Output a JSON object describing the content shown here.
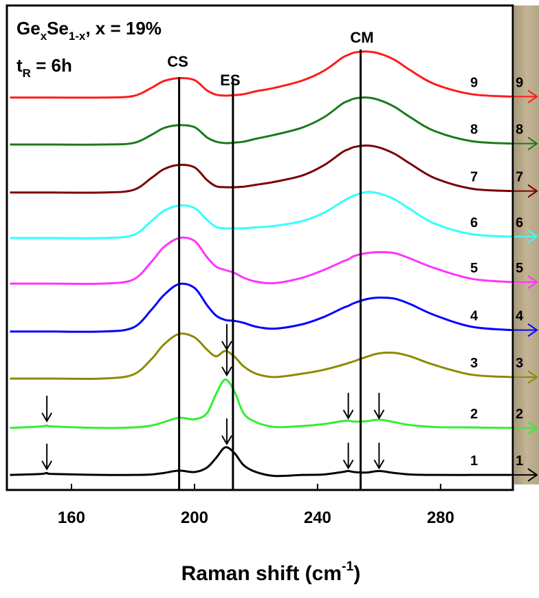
{
  "chart_data": {
    "type": "line",
    "title": [
      "Ge",
      "x",
      "Se",
      "1-x",
      ", x = 19%"
    ],
    "subtitle": [
      "t",
      "R",
      " = 6h"
    ],
    "x_label": [
      "Raman shift (cm",
      "-1",
      ")"
    ],
    "xlim": [
      139,
      303.5
    ],
    "xticks": [
      160,
      200,
      240,
      280
    ],
    "ylim": [
      0,
      100
    ],
    "x": [
      140,
      150,
      152,
      154,
      170,
      180,
      186,
      190,
      195,
      200,
      204,
      207,
      210,
      213,
      216,
      220,
      226,
      235,
      242,
      248,
      250,
      252,
      256,
      260,
      265,
      270,
      278,
      290,
      303
    ],
    "series": [
      {
        "name": "1",
        "color": "#000000",
        "values": [
          3.1,
          3.3,
          3.5,
          3.3,
          3.1,
          3.1,
          3.2,
          3.5,
          4.0,
          3.7,
          4.6,
          6.6,
          8.8,
          7.6,
          5.1,
          3.7,
          2.9,
          3.1,
          3.2,
          3.7,
          3.9,
          3.7,
          3.6,
          3.9,
          3.5,
          3.2,
          3.1,
          3.1,
          3.1
        ]
      },
      {
        "name": "2",
        "color": "#33ee33",
        "values": [
          12.8,
          13.1,
          13.3,
          13.1,
          12.8,
          12.9,
          13.3,
          14.0,
          14.9,
          14.6,
          15.8,
          19.8,
          22.8,
          20.3,
          15.8,
          14.0,
          13.0,
          13.2,
          13.6,
          14.2,
          14.3,
          14.1,
          14.2,
          14.5,
          14.0,
          13.4,
          13.0,
          12.9,
          12.8
        ]
      },
      {
        "name": "3",
        "color": "#8b8b00",
        "values": [
          23,
          23,
          23,
          23,
          23,
          23.8,
          27,
          30,
          32.2,
          31.5,
          29,
          27.6,
          28.7,
          27.5,
          25.5,
          24,
          23.3,
          24,
          24.8,
          25.8,
          26.2,
          26.6,
          27.5,
          28.2,
          28.3,
          27.6,
          25.8,
          23.8,
          23.3
        ]
      },
      {
        "name": "4",
        "color": "#0000ff",
        "values": [
          32.7,
          32.7,
          32.7,
          32.7,
          32.7,
          33.5,
          37.2,
          40.2,
          42.5,
          41.7,
          38.2,
          36.0,
          35.1,
          34.9,
          34.5,
          33.7,
          33.3,
          34.2,
          35.7,
          37.5,
          38.0,
          38.6,
          39.4,
          39.7,
          39.5,
          38.4,
          36.1,
          33.7,
          33.0
        ]
      },
      {
        "name": "5",
        "color": "#ff33ff",
        "values": [
          42.6,
          42.6,
          42.6,
          42.6,
          42.6,
          43.4,
          47.1,
          50.1,
          52.0,
          51.4,
          48.1,
          46.1,
          45.4,
          44.8,
          43.8,
          43.0,
          42.7,
          43.8,
          45.4,
          47.1,
          47.6,
          48.3,
          48.9,
          49.1,
          48.9,
          47.8,
          45.8,
          43.6,
          42.9
        ]
      },
      {
        "name": "6",
        "color": "#33ffff",
        "values": [
          52,
          52,
          52,
          52,
          52,
          52.6,
          55.5,
          57.6,
          58.7,
          58.2,
          55.8,
          54.3,
          54,
          54,
          54,
          54.2,
          54.5,
          55.5,
          57.2,
          59.5,
          60.2,
          60.8,
          61.5,
          61.2,
          60,
          58,
          55,
          52.8,
          52.3
        ]
      },
      {
        "name": "7",
        "color": "#7a0000",
        "values": [
          61.4,
          61.4,
          61.4,
          61.4,
          61.4,
          61.9,
          64.4,
          66.2,
          67.1,
          66.6,
          64.0,
          62.7,
          62.5,
          62.5,
          62.6,
          63.0,
          63.6,
          64.9,
          67.0,
          69.7,
          70.3,
          70.8,
          71.1,
          70.7,
          69.4,
          67.4,
          64.4,
          62.2,
          61.7
        ]
      },
      {
        "name": "8",
        "color": "#1a7a1a",
        "values": [
          71.3,
          71.3,
          71.3,
          71.3,
          71.3,
          71.6,
          73.3,
          74.7,
          75.3,
          74.9,
          72.8,
          71.9,
          71.6,
          71.7,
          71.9,
          72.5,
          73.3,
          74.8,
          76.9,
          79.7,
          80.3,
          80.8,
          81.0,
          80.5,
          79.1,
          77.0,
          74.1,
          72.0,
          71.5
        ]
      },
      {
        "name": "9",
        "color": "#ff1a1a",
        "values": [
          81,
          81,
          81,
          81,
          81,
          81.3,
          83,
          84.4,
          85,
          84.6,
          82.5,
          81.6,
          81.4,
          81.5,
          81.7,
          82.3,
          83,
          84.5,
          86.5,
          89.2,
          89.8,
          90.3,
          90.5,
          90.1,
          88.8,
          86.7,
          83.8,
          81.7,
          81.2
        ]
      }
    ],
    "annotations": [
      {
        "text": "CS",
        "x": 195
      },
      {
        "text": "ES",
        "x": 212.5
      },
      {
        "text": "CM",
        "x": 254
      }
    ],
    "markers": [
      {
        "x": 152,
        "y": 4.3
      },
      {
        "x": 152,
        "y": 14.2
      },
      {
        "x": 210.5,
        "y": 9.5
      },
      {
        "x": 210.5,
        "y": 23.7
      },
      {
        "x": 210.5,
        "y": 29
      },
      {
        "x": 250,
        "y": 4.5
      },
      {
        "x": 250,
        "y": 14.8
      },
      {
        "x": 260,
        "y": 4.5
      },
      {
        "x": 260,
        "y": 14.8
      }
    ]
  }
}
